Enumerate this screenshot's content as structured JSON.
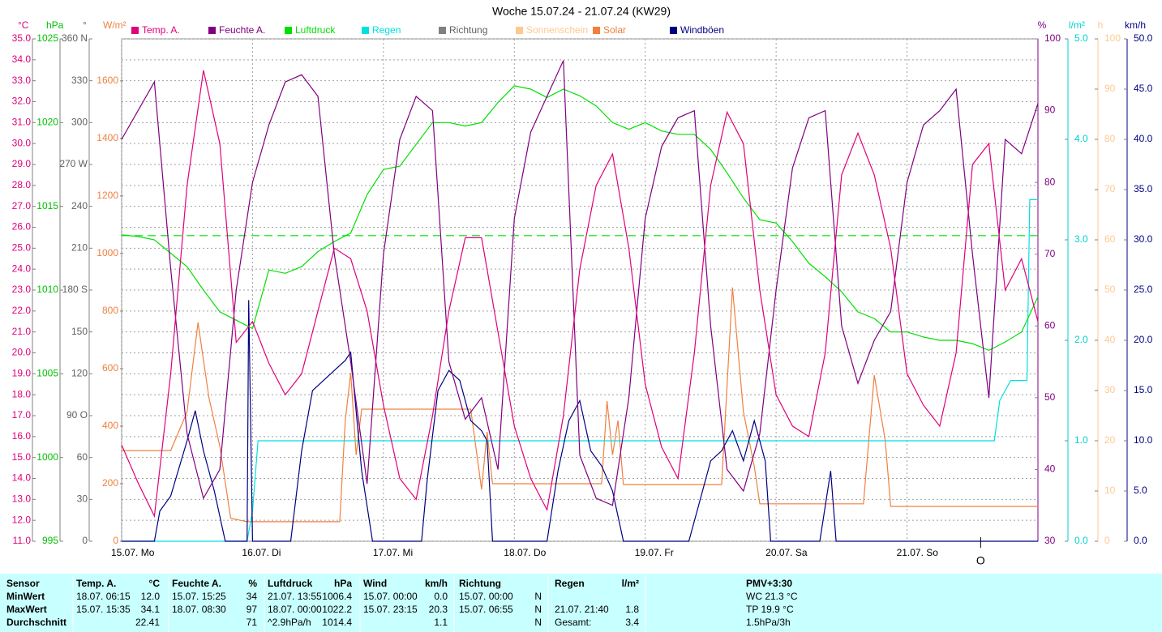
{
  "chart_data": {
    "type": "line",
    "title": "Woche 15.07.24 - 21.07.24 (KW29)",
    "xlim": [
      0,
      168
    ],
    "xticks": [
      {
        "value": 0,
        "label": "15.07. Mo"
      },
      {
        "value": 24,
        "label": "16.07. Di"
      },
      {
        "value": 48,
        "label": "17.07. Mi"
      },
      {
        "value": 72,
        "label": "18.07. Do"
      },
      {
        "value": 96,
        "label": "19.07. Fr"
      },
      {
        "value": 120,
        "label": "20.07. Sa"
      },
      {
        "value": 144,
        "label": "21.07. So"
      }
    ],
    "grid": true,
    "x": [
      0,
      3,
      6,
      9,
      12,
      15,
      18,
      21,
      24,
      27,
      30,
      33,
      36,
      39,
      42,
      45,
      48,
      51,
      54,
      57,
      60,
      63,
      66,
      69,
      72,
      75,
      78,
      81,
      84,
      87,
      90,
      93,
      96,
      99,
      102,
      105,
      108,
      111,
      114,
      117,
      120,
      123,
      126,
      129,
      132,
      135,
      138,
      141,
      144,
      147,
      150,
      153,
      156,
      159,
      162,
      165,
      168
    ],
    "axes": [
      {
        "unit": "°C",
        "color": "#e0007a",
        "side": "left",
        "lim": [
          11,
          35
        ],
        "ticks": [
          {
            "value": 11,
            "label": "11.0"
          },
          {
            "value": 12,
            "label": "12.0"
          },
          {
            "value": 13,
            "label": "13.0"
          },
          {
            "value": 14,
            "label": "14.0"
          },
          {
            "value": 15,
            "label": "15.0"
          },
          {
            "value": 16,
            "label": "16.0"
          },
          {
            "value": 17,
            "label": "17.0"
          },
          {
            "value": 18,
            "label": "18.0"
          },
          {
            "value": 19,
            "label": "19.0"
          },
          {
            "value": 20,
            "label": "20.0"
          },
          {
            "value": 21,
            "label": "21.0"
          },
          {
            "value": 22,
            "label": "22.0"
          },
          {
            "value": 23,
            "label": "23.0"
          },
          {
            "value": 24,
            "label": "24.0"
          },
          {
            "value": 25,
            "label": "25.0"
          },
          {
            "value": 26,
            "label": "26.0"
          },
          {
            "value": 27,
            "label": "27.0"
          },
          {
            "value": 28,
            "label": "28.0"
          },
          {
            "value": 29,
            "label": "29.0"
          },
          {
            "value": 30,
            "label": "30.0"
          },
          {
            "value": 31,
            "label": "31.0"
          },
          {
            "value": 32,
            "label": "32.0"
          },
          {
            "value": 33,
            "label": "33.0"
          },
          {
            "value": 34,
            "label": "34.0"
          },
          {
            "value": 35,
            "label": "35.0"
          }
        ]
      },
      {
        "unit": "hPa",
        "color": "#00c000",
        "side": "left",
        "lim": [
          995,
          1025
        ],
        "ticks": [
          995,
          1000,
          1005,
          1010,
          1015,
          1020,
          1025
        ]
      },
      {
        "unit": "°",
        "color": "#606060",
        "side": "left",
        "lim": [
          0,
          360
        ],
        "ticks": [
          0,
          30,
          60,
          {
            "value": 90,
            "label": "90 O"
          },
          120,
          150,
          {
            "value": 180,
            "label": "180 S"
          },
          210,
          240,
          {
            "value": 270,
            "label": "270 W"
          },
          300,
          330,
          {
            "value": 360,
            "label": "360 N"
          }
        ]
      },
      {
        "unit": "W/m²",
        "color": "#f08040",
        "side": "left",
        "lim": [
          0,
          1746
        ],
        "ticks": [
          0,
          200,
          400,
          600,
          800,
          1000,
          1200,
          1400,
          1600
        ]
      },
      {
        "unit": "%",
        "color": "#800080",
        "side": "right",
        "lim": [
          30,
          100
        ],
        "ticks": [
          30,
          40,
          50,
          60,
          70,
          80,
          90,
          100
        ]
      },
      {
        "unit": "l/m²",
        "color": "#00d0d0",
        "side": "right",
        "lim": [
          0,
          5
        ],
        "ticks": [
          {
            "value": 0,
            "label": "0.0"
          },
          {
            "value": 1,
            "label": "1.0"
          },
          {
            "value": 2,
            "label": "2.0"
          },
          {
            "value": 3,
            "label": "3.0"
          },
          {
            "value": 4,
            "label": "4.0"
          },
          {
            "value": 5,
            "label": "5.0"
          }
        ]
      },
      {
        "unit": "h",
        "color": "#ffc890",
        "side": "right",
        "lim": [
          0,
          100
        ],
        "ticks": [
          0,
          10,
          20,
          30,
          40,
          50,
          60,
          70,
          80,
          90,
          100
        ]
      },
      {
        "unit": "km/h",
        "color": "#000080",
        "side": "right",
        "lim": [
          0,
          50
        ],
        "ticks": [
          {
            "value": 0,
            "label": "0.0"
          },
          {
            "value": 5,
            "label": "5.0"
          },
          {
            "value": 10,
            "label": "10.0"
          },
          {
            "value": 15,
            "label": "15.0"
          },
          {
            "value": 20,
            "label": "20.0"
          },
          {
            "value": 25,
            "label": "25.0"
          },
          {
            "value": 30,
            "label": "30.0"
          },
          {
            "value": 35,
            "label": "35.0"
          },
          {
            "value": 40,
            "label": "40.0"
          },
          {
            "value": 45,
            "label": "45.0"
          },
          {
            "value": 50,
            "label": "50.0"
          }
        ]
      }
    ],
    "series": [
      {
        "name": "Temp. A.",
        "color": "#e0007a",
        "axis": 0,
        "values": [
          15.6,
          13.8,
          12.2,
          19,
          28,
          33.5,
          30,
          20.5,
          21.5,
          19.5,
          18.0,
          19.0,
          22,
          25,
          24.5,
          22,
          17.5,
          14,
          13,
          17,
          22,
          25.5,
          25.5,
          21,
          16.5,
          14,
          12.5,
          17,
          24,
          28,
          29.5,
          25,
          18.5,
          15.5,
          14,
          20,
          28,
          31.5,
          30,
          23,
          18,
          16.5,
          16,
          20,
          28.5,
          30.5,
          28.5,
          25,
          19,
          17.5,
          16.5,
          20,
          29,
          30,
          23,
          24.5,
          21.5
        ]
      },
      {
        "name": "Feuchte A.",
        "color": "#800080",
        "axis": 4,
        "values": [
          86,
          90,
          94,
          68,
          45,
          36,
          40,
          65,
          80,
          88,
          94,
          95,
          92,
          70,
          55,
          38,
          70,
          86,
          92,
          90,
          55,
          47,
          50,
          40,
          75,
          87,
          92,
          97,
          42,
          36,
          35,
          50,
          75,
          85,
          89,
          90,
          60,
          40,
          37,
          45,
          65,
          82,
          89,
          90,
          60,
          52,
          58,
          62,
          80,
          88,
          90,
          93,
          70,
          50,
          86,
          84,
          91
        ]
      },
      {
        "name": "Luftdruck",
        "color": "#00e000",
        "axis": 1,
        "reference": 1013.25,
        "values": [
          1013.3,
          1013.2,
          1013.0,
          1012.2,
          1011.4,
          1010.0,
          1008.7,
          1008.2,
          1007.7,
          1011.2,
          1011.0,
          1011.4,
          1012.3,
          1012.9,
          1013.4,
          1015.7,
          1017.2,
          1017.4,
          1018.7,
          1020.0,
          1020.0,
          1019.8,
          1020.0,
          1021.2,
          1022.2,
          1022.0,
          1021.5,
          1022.0,
          1021.6,
          1021.0,
          1020.0,
          1019.6,
          1020.0,
          1019.5,
          1019.3,
          1019.3,
          1018.4,
          1017.0,
          1015.5,
          1014.2,
          1014.0,
          1012.9,
          1011.6,
          1010.8,
          1009.9,
          1008.7,
          1008.3,
          1007.5,
          1007.5,
          1007.2,
          1007.0,
          1007.0,
          1006.8,
          1006.4,
          1006.9,
          1007.5,
          1009.6
        ]
      },
      {
        "name": "Regen",
        "color": "#00e0e0",
        "axis": 5,
        "x": [
          0,
          23,
          24,
          25,
          160,
          161,
          163,
          166,
          166.5,
          168
        ],
        "values": [
          0,
          0,
          0.3,
          1.0,
          1.0,
          1.4,
          1.6,
          1.6,
          3.4,
          3.4
        ]
      },
      {
        "name": "Richtung",
        "color": "#808080",
        "axis": 2
      },
      {
        "name": "Sonnenschein",
        "color": "#ffc890",
        "axis": 6
      },
      {
        "name": "Solar",
        "color": "#f08040",
        "axis": 3,
        "x": [
          0,
          9,
          12,
          14,
          16,
          18,
          20,
          23,
          40,
          41,
          42,
          43,
          44,
          64,
          66,
          67,
          68,
          88,
          89,
          90,
          91,
          92,
          110,
          112,
          114,
          116,
          117,
          136,
          138,
          140,
          141,
          168
        ],
        "values": [
          315,
          315,
          450,
          760,
          500,
          330,
          80,
          68,
          68,
          420,
          585,
          300,
          459,
          459,
          180,
          380,
          200,
          200,
          487,
          300,
          420,
          197,
          197,
          882,
          450,
          260,
          130,
          130,
          577,
          350,
          121,
          121
        ]
      },
      {
        "name": "Windböen",
        "color": "#000080",
        "axis": 7,
        "x": [
          0,
          6,
          7,
          9,
          12,
          13.5,
          15,
          17,
          19,
          23,
          23.3,
          24,
          31,
          33,
          35,
          37,
          39,
          41,
          42,
          44,
          46,
          55,
          56,
          58,
          60,
          62,
          64,
          66,
          67,
          68,
          78,
          80,
          82,
          84,
          86,
          88,
          90,
          92,
          104,
          106,
          108,
          110,
          112,
          114,
          116,
          118,
          119,
          128,
          130,
          131,
          168
        ],
        "values": [
          0,
          0,
          3,
          4.5,
          10,
          13,
          9,
          5,
          0,
          0,
          24,
          0,
          0,
          9,
          15,
          16,
          17,
          18,
          18.8,
          7,
          0,
          0,
          6,
          15,
          17,
          16,
          12,
          11,
          10,
          0,
          0,
          7,
          12,
          14,
          9,
          7.5,
          5,
          0,
          0,
          4,
          8,
          9,
          11,
          8,
          12,
          8,
          0,
          0,
          7,
          0,
          0
        ]
      }
    ],
    "marker": {
      "x": 157.5,
      "label": "O"
    }
  },
  "table": {
    "first_header": "Sensor",
    "columns": [
      {
        "title": "Temp. A.",
        "unit": "°C"
      },
      {
        "title": "Feuchte A.",
        "unit": "%"
      },
      {
        "title": "Luftdruck",
        "unit": "hPa"
      },
      {
        "title": "Wind",
        "unit": "km/h"
      },
      {
        "title": "Richtung"
      },
      {
        "title": "Regen",
        "unit": "l/m²"
      }
    ],
    "pmv_header": "PMV+3:30",
    "rows": [
      {
        "label": "MinWert",
        "cells": [
          {
            "time": "18.07. 06:15",
            "value": "12.0"
          },
          {
            "time": "15.07. 15:25",
            "value": "34"
          },
          {
            "time": "21.07. 13:55",
            "value": "1006.4"
          },
          {
            "time": "15.07. 00:00",
            "value": "0.0"
          },
          {
            "time": "15.07. 00:00",
            "value": "N"
          },
          {}
        ],
        "pmv": "WC 21.3 °C"
      },
      {
        "label": "MaxWert",
        "cells": [
          {
            "time": "15.07. 15:35",
            "value": "34.1"
          },
          {
            "time": "18.07. 08:30",
            "value": "97"
          },
          {
            "time": "18.07. 00:00",
            "value": "1022.2"
          },
          {
            "time": "15.07. 23:15",
            "value": "20.3"
          },
          {
            "time": "15.07. 06:55",
            "value": "N"
          },
          {
            "time": "21.07. 21:40",
            "value": "1.8"
          }
        ],
        "pmv": "TP 19.9 °C"
      },
      {
        "label": "Durchschnitt",
        "cells": [
          {
            "value": "22.41"
          },
          {
            "value": "71"
          },
          {
            "time": "^2.9hPa/h",
            "value": "1014.4"
          },
          {
            "value": "1.1"
          },
          {
            "value": "N"
          },
          {
            "time": "Gesamt:",
            "value": "3.4"
          }
        ],
        "pmv": "1.5hPa/3h"
      }
    ]
  }
}
